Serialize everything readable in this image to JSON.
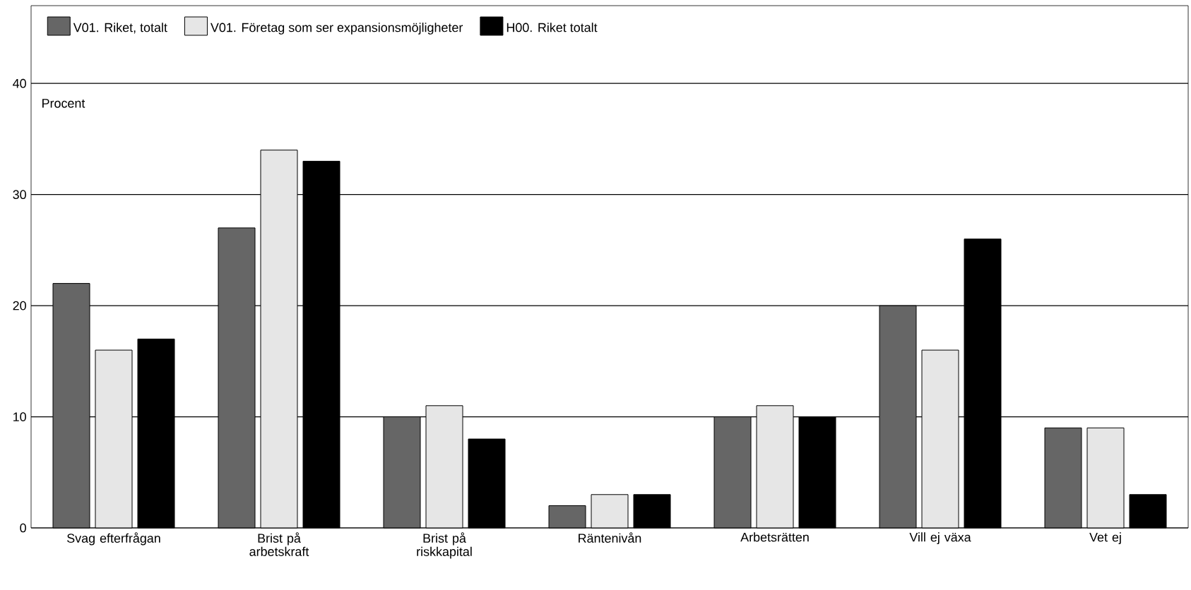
{
  "chart_data": {
    "type": "bar",
    "ylabel": "Procent",
    "categories": [
      "Svag efterfrågan",
      "Brist på arbetskraft",
      "Brist på riskkapital",
      "Räntenivån",
      "Arbetsrätten",
      "Vill ej växa",
      "Vet ej"
    ],
    "series": [
      {
        "name": "V01. Riket, totalt",
        "color": "#666666",
        "values": [
          22,
          27,
          10,
          2,
          10,
          20,
          9
        ]
      },
      {
        "name": "V01. Företag som ser expansionsmöjligheter",
        "color": "#e6e6e6",
        "values": [
          16,
          34,
          11,
          3,
          11,
          16,
          9
        ]
      },
      {
        "name": "H00. Riket totalt",
        "color": "#000000",
        "values": [
          17,
          33,
          8,
          3,
          10,
          26,
          3
        ]
      }
    ],
    "ylim": [
      0,
      47
    ],
    "yticks": [
      0,
      10,
      20,
      30,
      40
    ],
    "grid": "y",
    "legend": "top"
  }
}
